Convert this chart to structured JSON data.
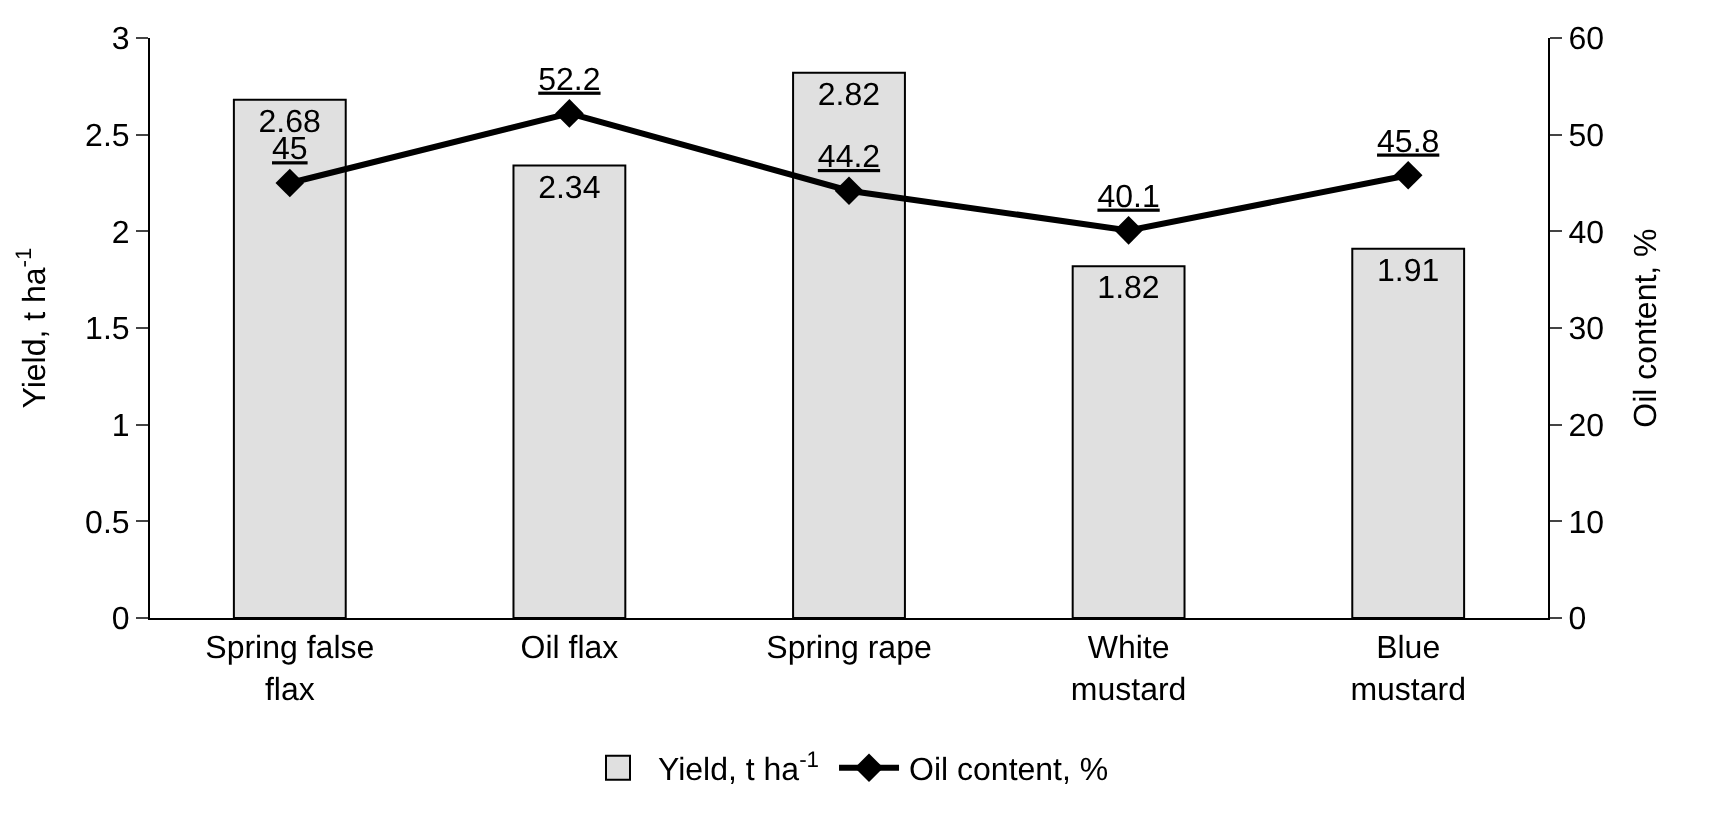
{
  "chart_data": {
    "type": "bar",
    "categories": [
      "Spring false flax",
      "Oil flax",
      "Spring rape",
      "White mustard",
      "Blue mustard"
    ],
    "series": [
      {
        "name": "Yield, t ha$^{-1}$",
        "color": "#e0e0e0",
        "values": [
          2.68,
          2.34,
          2.82,
          1.82,
          1.91
        ]
      },
      {
        "name": "Oil content, %",
        "type": "line",
        "axis": "y2",
        "color": "#000000",
        "marker": "diamond",
        "values": [
          45,
          52.2,
          44.2,
          40.1,
          45.8
        ]
      }
    ],
    "ylabel": "Yield, t ha$^{-1}$",
    "y2label": "Oil content, %",
    "ylim": [
      0,
      3
    ],
    "yticks": [
      0,
      0.5,
      1,
      1.5,
      2,
      2.5,
      3
    ],
    "y2lim": [
      0,
      60
    ],
    "y2ticks": [
      0,
      10,
      20,
      30,
      40,
      50,
      60
    ],
    "data_labels": true,
    "legend": "bottom"
  }
}
